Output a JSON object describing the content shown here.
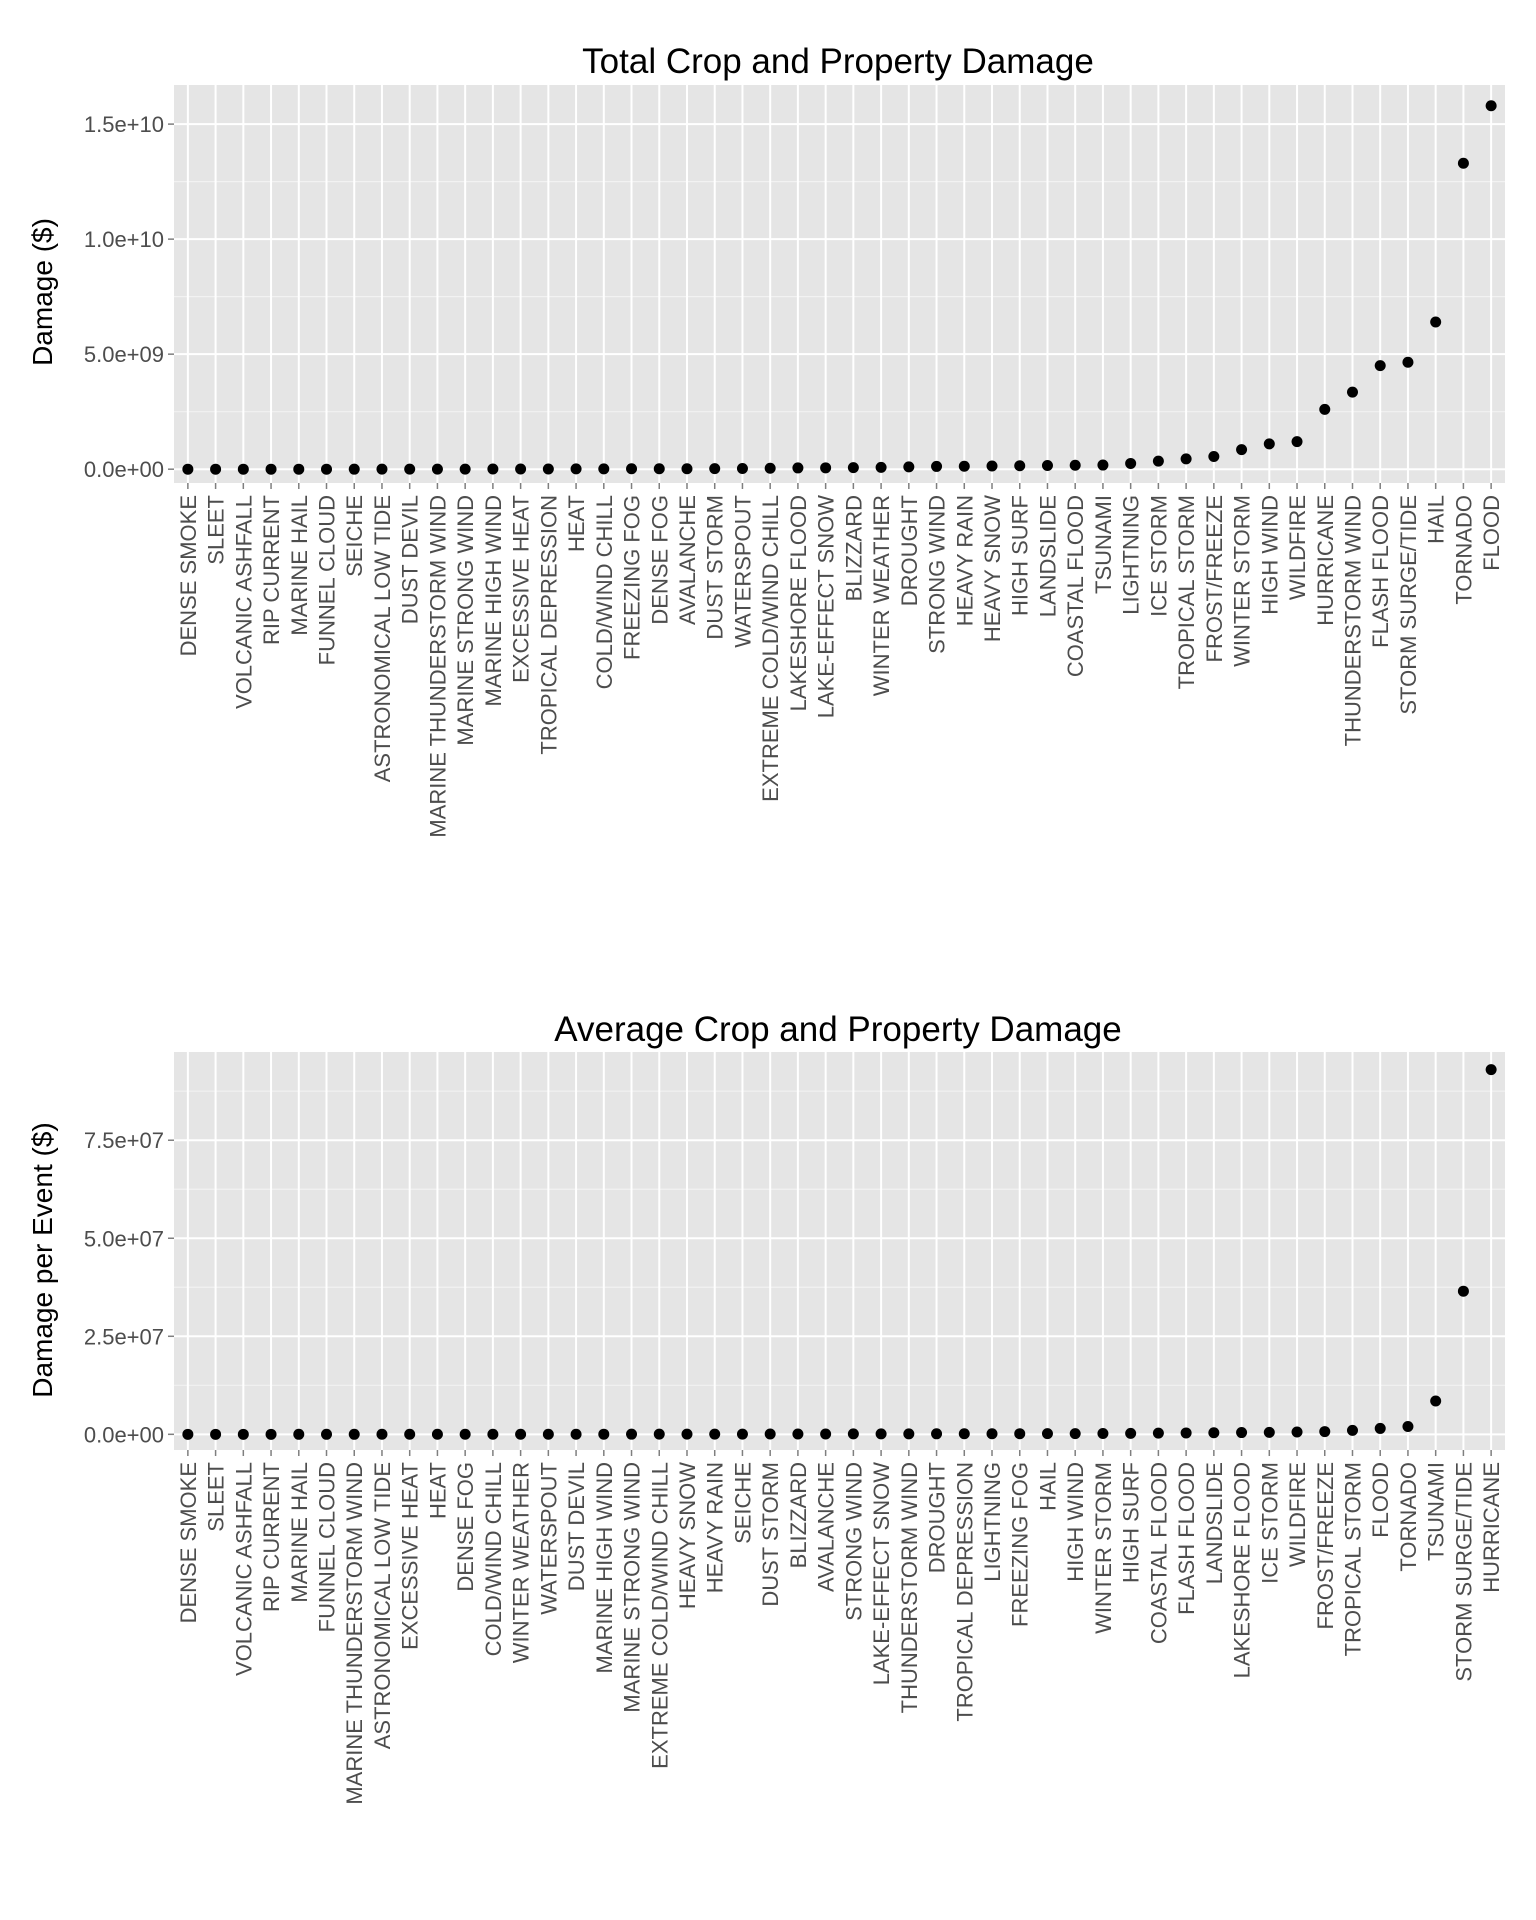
{
  "chart_data": [
    {
      "type": "scatter",
      "title": "Total Crop and Property Damage",
      "xlabel": "",
      "ylabel": "Damage ($)",
      "yticks": [
        0,
        5000000000,
        10000000000,
        15000000000
      ],
      "ytick_labels": [
        "0.0e+00",
        "5.0e+09",
        "1.0e+10",
        "1.5e+10"
      ],
      "ylim": [
        -600000000,
        16700000000
      ],
      "grid": true,
      "legend": "none",
      "point_color": "#000000",
      "panel_color": "#e5e5e5",
      "categories": [
        "DENSE SMOKE",
        "SLEET",
        "VOLCANIC ASHFALL",
        "RIP CURRENT",
        "MARINE HAIL",
        "FUNNEL CLOUD",
        "SEICHE",
        "ASTRONOMICAL LOW TIDE",
        "DUST DEVIL",
        "MARINE THUNDERSTORM WIND",
        "MARINE STRONG WIND",
        "MARINE HIGH WIND",
        "EXCESSIVE HEAT",
        "TROPICAL DEPRESSION",
        "HEAT",
        "COLD/WIND CHILL",
        "FREEZING FOG",
        "DENSE FOG",
        "AVALANCHE",
        "DUST STORM",
        "WATERSPOUT",
        "EXTREME COLD/WIND CHILL",
        "LAKESHORE FLOOD",
        "LAKE-EFFECT SNOW",
        "BLIZZARD",
        "WINTER WEATHER",
        "DROUGHT",
        "STRONG WIND",
        "HEAVY RAIN",
        "HEAVY SNOW",
        "HIGH SURF",
        "LANDSLIDE",
        "COASTAL FLOOD",
        "TSUNAMI",
        "LIGHTNING",
        "ICE STORM",
        "TROPICAL STORM",
        "FROST/FREEZE",
        "WINTER STORM",
        "HIGH WIND",
        "WILDFIRE",
        "HURRICANE",
        "THUNDERSTORM WIND",
        "FLASH FLOOD",
        "STORM SURGE/TIDE",
        "HAIL",
        "TORNADO",
        "FLOOD"
      ],
      "values": [
        0,
        0,
        0,
        1000,
        50000,
        150000,
        980000,
        1500000,
        1900000,
        4000000,
        4500000,
        8000000,
        9000000,
        10000000,
        12000000,
        16000000,
        18000000,
        20000000,
        21000000,
        25000000,
        30000000,
        40000000,
        55000000,
        60000000,
        70000000,
        80000000,
        100000000,
        120000000,
        130000000,
        140000000,
        150000000,
        160000000,
        170000000,
        180000000,
        250000000,
        350000000,
        450000000,
        550000000,
        850000000,
        1100000000,
        1200000000,
        2600000000,
        3350000000,
        4500000000,
        4650000000,
        6400000000,
        13300000000,
        15800000000
      ]
    },
    {
      "type": "scatter",
      "title": "Average Crop and Property Damage",
      "xlabel": "",
      "ylabel": "Damage per Event ($)",
      "yticks": [
        0,
        25000000,
        50000000,
        75000000
      ],
      "ytick_labels": [
        "0.0e+00",
        "2.5e+07",
        "5.0e+07",
        "7.5e+07"
      ],
      "ylim": [
        -4000000,
        97500000
      ],
      "grid": true,
      "legend": "none",
      "point_color": "#000000",
      "panel_color": "#e5e5e5",
      "categories": [
        "DENSE SMOKE",
        "SLEET",
        "VOLCANIC ASHFALL",
        "RIP CURRENT",
        "MARINE HAIL",
        "FUNNEL CLOUD",
        "MARINE THUNDERSTORM WIND",
        "ASTRONOMICAL LOW TIDE",
        "EXCESSIVE HEAT",
        "HEAT",
        "DENSE FOG",
        "COLD/WIND CHILL",
        "WINTER WEATHER",
        "WATERSPOUT",
        "DUST DEVIL",
        "MARINE HIGH WIND",
        "MARINE STRONG WIND",
        "EXTREME COLD/WIND CHILL",
        "HEAVY SNOW",
        "HEAVY RAIN",
        "SEICHE",
        "DUST STORM",
        "BLIZZARD",
        "AVALANCHE",
        "STRONG WIND",
        "LAKE-EFFECT SNOW",
        "THUNDERSTORM WIND",
        "DROUGHT",
        "TROPICAL DEPRESSION",
        "LIGHTNING",
        "FREEZING FOG",
        "HAIL",
        "HIGH WIND",
        "WINTER STORM",
        "HIGH SURF",
        "COASTAL FLOOD",
        "FLASH FLOOD",
        "LANDSLIDE",
        "LAKESHORE FLOOD",
        "ICE STORM",
        "WILDFIRE",
        "FROST/FREEZE",
        "TROPICAL STORM",
        "FLOOD",
        "TORNADO",
        "TSUNAMI",
        "STORM SURGE/TIDE",
        "HURRICANE"
      ],
      "values": [
        0,
        0,
        0,
        0,
        1000,
        2000,
        3000,
        5000,
        7000,
        10000,
        12000,
        15000,
        18000,
        20000,
        25000,
        30000,
        35000,
        40000,
        45000,
        50000,
        60000,
        70000,
        80000,
        90000,
        100000,
        110000,
        120000,
        130000,
        140000,
        150000,
        160000,
        170000,
        180000,
        200000,
        250000,
        300000,
        350000,
        400000,
        450000,
        500000,
        600000,
        700000,
        1000000,
        1500000,
        2000000,
        8500000,
        36500000,
        93000000
      ]
    }
  ]
}
